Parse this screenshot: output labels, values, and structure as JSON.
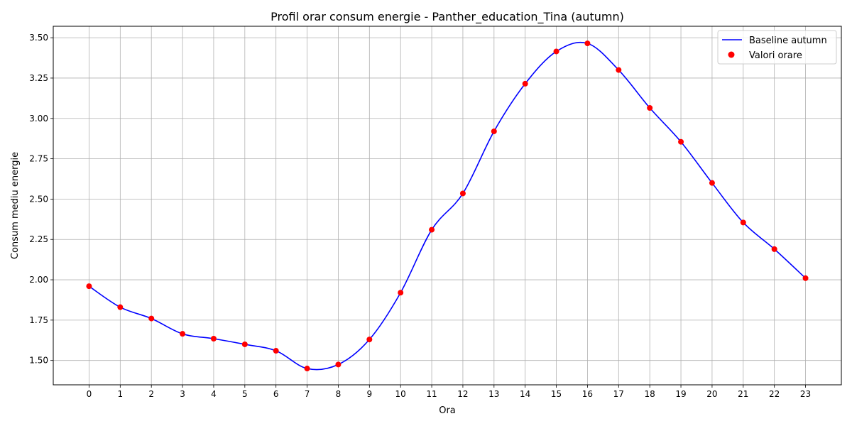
{
  "chart_data": {
    "type": "line",
    "title": "Profil orar consum energie - Panther_education_Tina (autumn)",
    "xlabel": "Ora",
    "ylabel": "Consum mediu energie",
    "x": [
      0,
      1,
      2,
      3,
      4,
      5,
      6,
      7,
      8,
      9,
      10,
      11,
      12,
      13,
      14,
      15,
      16,
      17,
      18,
      19,
      20,
      21,
      22,
      23
    ],
    "x_tick_labels": [
      "0",
      "1",
      "2",
      "3",
      "4",
      "5",
      "6",
      "7",
      "8",
      "9",
      "10",
      "11",
      "12",
      "13",
      "14",
      "15",
      "16",
      "17",
      "18",
      "19",
      "20",
      "21",
      "22",
      "23"
    ],
    "y_ticks": [
      1.5,
      1.75,
      2.0,
      2.25,
      2.5,
      2.75,
      3.0,
      3.25,
      3.5
    ],
    "y_tick_labels": [
      "1.50",
      "1.75",
      "2.00",
      "2.25",
      "2.50",
      "2.75",
      "3.00",
      "3.25",
      "3.50"
    ],
    "xlim": [
      -1.15,
      24.15
    ],
    "ylim": [
      1.349,
      3.571
    ],
    "grid": true,
    "legend_position": "top-right",
    "series": [
      {
        "name": "Baseline autumn",
        "kind": "smooth-line",
        "color": "#0000ff",
        "values": [
          1.96,
          1.83,
          1.76,
          1.665,
          1.635,
          1.6,
          1.56,
          1.45,
          1.475,
          1.63,
          1.92,
          2.31,
          2.535,
          2.92,
          3.215,
          3.415,
          3.465,
          3.3,
          3.065,
          2.855,
          2.6,
          2.355,
          2.19,
          2.01
        ]
      },
      {
        "name": "Valori orare",
        "kind": "scatter",
        "color": "#ff0000",
        "values": [
          1.96,
          1.83,
          1.76,
          1.665,
          1.635,
          1.6,
          1.56,
          1.45,
          1.475,
          1.63,
          1.92,
          2.31,
          2.535,
          2.92,
          3.215,
          3.415,
          3.465,
          3.3,
          3.065,
          2.855,
          2.6,
          2.355,
          2.19,
          2.01
        ]
      }
    ]
  }
}
